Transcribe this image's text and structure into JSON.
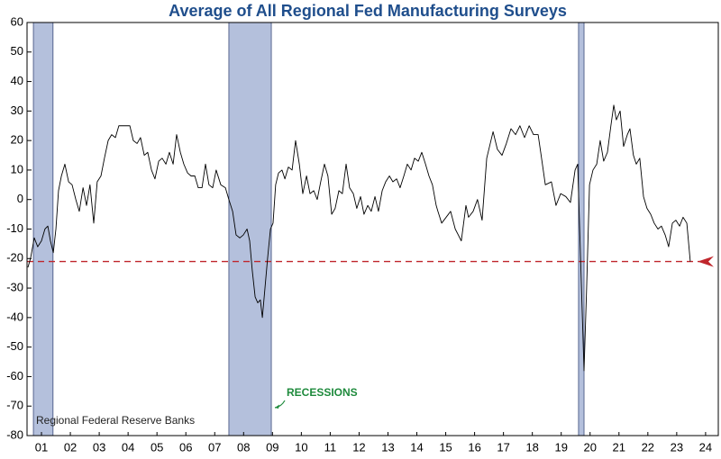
{
  "chart_data": {
    "type": "line",
    "title": "Average of All Regional Fed Manufacturing Surveys",
    "source": "Regional Federal Reserve Banks",
    "color": "#000000",
    "x": [
      2001.03,
      2001.12,
      2001.25,
      2001.37,
      2001.5,
      2001.62,
      2001.72,
      2001.81,
      2001.91,
      2002.0,
      2002.09,
      2002.19,
      2002.31,
      2002.44,
      2002.56,
      2002.69,
      2002.81,
      2002.94,
      2003.06,
      2003.18,
      2003.31,
      2003.43,
      2003.56,
      2003.68,
      2003.81,
      2003.93,
      2004.06,
      2004.18,
      2004.31,
      2004.43,
      2004.56,
      2004.68,
      2004.81,
      2004.93,
      2005.06,
      2005.18,
      2005.31,
      2005.43,
      2005.56,
      2005.68,
      2005.81,
      2005.93,
      2006.06,
      2006.18,
      2006.31,
      2006.43,
      2006.56,
      2006.68,
      2006.81,
      2006.93,
      2007.06,
      2007.18,
      2007.3,
      2007.43,
      2007.55,
      2007.71,
      2007.87,
      2007.99,
      2008.12,
      2008.24,
      2008.37,
      2008.49,
      2008.62,
      2008.71,
      2008.8,
      2008.9,
      2008.99,
      2009.08,
      2009.15,
      2009.24,
      2009.33,
      2009.43,
      2009.52,
      2009.61,
      2009.71,
      2009.83,
      2009.93,
      2010.05,
      2010.18,
      2010.3,
      2010.43,
      2010.55,
      2010.68,
      2010.8,
      2010.93,
      2011.05,
      2011.17,
      2011.3,
      2011.42,
      2011.55,
      2011.67,
      2011.8,
      2011.92,
      2012.05,
      2012.17,
      2012.3,
      2012.42,
      2012.55,
      2012.67,
      2012.8,
      2012.92,
      2013.05,
      2013.17,
      2013.3,
      2013.42,
      2013.55,
      2013.67,
      2013.8,
      2013.92,
      2014.05,
      2014.17,
      2014.3,
      2014.42,
      2014.55,
      2014.67,
      2014.8,
      2014.92,
      2015.04,
      2015.17,
      2015.23,
      2015.36,
      2015.67,
      2015.83,
      2016.04,
      2016.2,
      2016.29,
      2016.45,
      2016.6,
      2016.76,
      2016.92,
      2017.14,
      2017.29,
      2017.45,
      2017.6,
      2017.76,
      2017.92,
      2018.07,
      2018.23,
      2018.39,
      2018.54,
      2018.7,
      2018.79,
      2018.95,
      2019.16,
      2019.32,
      2019.48,
      2019.66,
      2019.82,
      2019.98,
      2020.07,
      2020.17,
      2020.29,
      2020.38,
      2020.48,
      2020.6,
      2020.73,
      2020.85,
      2020.97,
      2021.1,
      2021.22,
      2021.32,
      2021.41,
      2021.54,
      2021.66,
      2021.79,
      2021.88,
      2022.0,
      2022.1,
      2022.22,
      2022.35,
      2022.47,
      2022.6,
      2022.72,
      2022.85,
      2022.97,
      2023.1,
      2023.22,
      2023.35,
      2023.47,
      2023.6,
      2023.72,
      2023.85,
      2023.97
    ],
    "values": [
      -23,
      -20,
      -13,
      -16,
      -14,
      -10,
      -9,
      -14,
      -18,
      -10,
      3,
      8,
      12,
      6,
      5,
      0,
      -4,
      4,
      -2,
      5,
      -8,
      6,
      8,
      14,
      20,
      22,
      21,
      25,
      25,
      25,
      25,
      20,
      19,
      21,
      15,
      16,
      10,
      7,
      13,
      14,
      12,
      16,
      12,
      22,
      16,
      12,
      9,
      8,
      8,
      4,
      4,
      12,
      5,
      4,
      10,
      5,
      4,
      0,
      -4,
      -12,
      -13,
      -12,
      -10,
      -14,
      -24,
      -33,
      -35,
      -34,
      -40,
      -30,
      -20,
      -10,
      -8,
      5,
      9,
      10,
      7,
      11,
      10,
      20,
      12,
      2,
      8,
      2,
      3,
      0,
      6,
      12,
      8,
      -5,
      -3,
      3,
      2,
      12,
      4,
      2,
      -3,
      1,
      -5,
      -2,
      -4,
      1,
      -4,
      3,
      6,
      8,
      6,
      7,
      4,
      8,
      12,
      10,
      14,
      13,
      16,
      12,
      8,
      5,
      -2,
      -4,
      -8,
      -4,
      -10,
      -14,
      -2,
      -6,
      -4,
      0,
      -7,
      14,
      23,
      17,
      15,
      19,
      24,
      22,
      25,
      21,
      25,
      22,
      22,
      16,
      5,
      6,
      -2,
      2,
      1,
      -1,
      10,
      12,
      -20,
      -58,
      -30,
      5,
      10,
      12,
      20,
      13,
      16,
      25,
      32,
      27,
      30,
      18,
      22,
      24,
      15,
      12,
      14,
      1,
      -3,
      -5,
      -8,
      -10,
      -9,
      -12,
      -16,
      -8,
      -7,
      -9,
      -6,
      -8,
      -21
    ],
    "xlim": [
      2001,
      2024.94
    ],
    "xticks": [
      {
        "value": 2001.5,
        "label": "01"
      },
      {
        "value": 2002.5,
        "label": "02"
      },
      {
        "value": 2003.5,
        "label": "03"
      },
      {
        "value": 2004.5,
        "label": "04"
      },
      {
        "value": 2005.5,
        "label": "05"
      },
      {
        "value": 2006.5,
        "label": "06"
      },
      {
        "value": 2007.5,
        "label": "07"
      },
      {
        "value": 2008.5,
        "label": "08"
      },
      {
        "value": 2009.5,
        "label": "09"
      },
      {
        "value": 2010.5,
        "label": "10"
      },
      {
        "value": 2011.5,
        "label": "11"
      },
      {
        "value": 2012.5,
        "label": "12"
      },
      {
        "value": 2013.5,
        "label": "13"
      },
      {
        "value": 2014.5,
        "label": "14"
      },
      {
        "value": 2015.5,
        "label": "15"
      },
      {
        "value": 2016.5,
        "label": "16"
      },
      {
        "value": 2017.5,
        "label": "17"
      },
      {
        "value": 2018.5,
        "label": "18"
      },
      {
        "value": 2019.5,
        "label": "19"
      },
      {
        "value": 2020.5,
        "label": "20"
      },
      {
        "value": 2021.5,
        "label": "21"
      },
      {
        "value": 2022.5,
        "label": "22"
      },
      {
        "value": 2023.5,
        "label": "23"
      },
      {
        "value": 2024.5,
        "label": "24"
      }
    ],
    "ylim": [
      -80,
      60
    ],
    "yticks": [
      -80,
      -70,
      -60,
      -50,
      -40,
      -30,
      -20,
      -10,
      0,
      10,
      20,
      30,
      40,
      50,
      60
    ],
    "recessions": {
      "label": "RECESSIONS",
      "color": "#b4c0dc",
      "periods": [
        [
          2001.22,
          2001.9
        ],
        [
          2007.99,
          2009.46
        ],
        [
          2020.1,
          2020.29
        ]
      ]
    },
    "reference_line": {
      "value": -21,
      "color": "#c0262c"
    }
  }
}
